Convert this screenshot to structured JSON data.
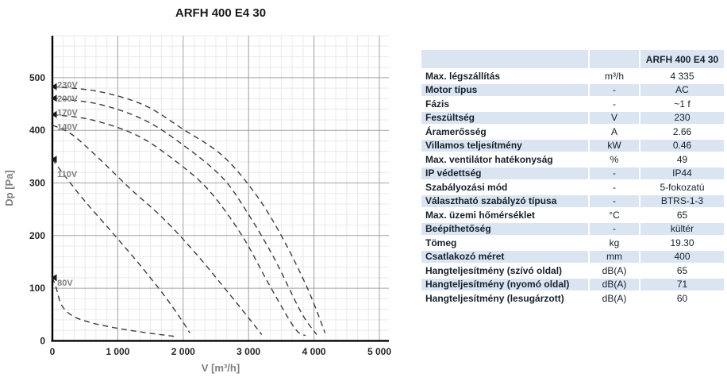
{
  "page_title": "ARFH 400 E4 30",
  "chart_data": {
    "type": "line",
    "title": "ARFH 400 E4 30",
    "xlabel": "V [m³/h]",
    "ylabel": "Dp [Pa]",
    "xlim": [
      0,
      5166
    ],
    "ylim": [
      0,
      580
    ],
    "x_major": 1000,
    "x_minor_divisions": 6,
    "y_major": 100,
    "y_minor": 20,
    "grid": true,
    "line_style": "dashed",
    "x_ticks": [
      "0",
      "1 000",
      "2 000",
      "3 000",
      "4 000",
      "5 000"
    ],
    "x_tick_values": [
      0,
      1000,
      2000,
      3000,
      4000,
      5000
    ],
    "y_ticks": [
      "0",
      "100",
      "200",
      "300",
      "400",
      "500"
    ],
    "y_tick_values": [
      0,
      100,
      200,
      300,
      400,
      500
    ],
    "legend_position": "labels-at-curve-start",
    "series": [
      {
        "name": "230V",
        "label_y": 487,
        "axis_marker_y": 483,
        "points": [
          [
            0,
            483
          ],
          [
            700,
            474
          ],
          [
            1400,
            448
          ],
          [
            2000,
            402
          ],
          [
            2600,
            352
          ],
          [
            3100,
            280
          ],
          [
            3500,
            200
          ],
          [
            3900,
            100
          ],
          [
            4170,
            15
          ]
        ]
      },
      {
        "name": "200V",
        "label_y": 461,
        "axis_marker_y": 461,
        "points": [
          [
            0,
            461
          ],
          [
            700,
            450
          ],
          [
            1400,
            420
          ],
          [
            2000,
            372
          ],
          [
            2600,
            310
          ],
          [
            3000,
            240
          ],
          [
            3400,
            155
          ],
          [
            3800,
            55
          ],
          [
            4040,
            12
          ]
        ]
      },
      {
        "name": "170V",
        "label_y": 434,
        "axis_marker_y": 430,
        "points": [
          [
            0,
            430
          ],
          [
            600,
            420
          ],
          [
            1300,
            390
          ],
          [
            1900,
            340
          ],
          [
            2400,
            285
          ],
          [
            2900,
            200
          ],
          [
            3300,
            110
          ],
          [
            3700,
            25
          ],
          [
            3870,
            10
          ]
        ]
      },
      {
        "name": "140V",
        "label_y": 407,
        "axis_marker_y": null,
        "points": [
          [
            0,
            410
          ],
          [
            300,
            392
          ],
          [
            700,
            348
          ],
          [
            1200,
            288
          ],
          [
            1700,
            232
          ],
          [
            2200,
            165
          ],
          [
            2700,
            90
          ],
          [
            3100,
            28
          ],
          [
            3200,
            12
          ]
        ]
      },
      {
        "name": "110V",
        "label_y": 317,
        "axis_marker_y": 345,
        "points": [
          [
            0,
            345
          ],
          [
            200,
            312
          ],
          [
            500,
            265
          ],
          [
            900,
            208
          ],
          [
            1300,
            150
          ],
          [
            1700,
            88
          ],
          [
            2000,
            35
          ],
          [
            2100,
            15
          ]
        ]
      },
      {
        "name": "80V",
        "label_y": 111,
        "axis_marker_y": 120,
        "points": [
          [
            0,
            120
          ],
          [
            60,
            100
          ],
          [
            140,
            68
          ],
          [
            300,
            48
          ],
          [
            550,
            36
          ],
          [
            900,
            26
          ],
          [
            1400,
            16
          ],
          [
            1900,
            8
          ]
        ]
      }
    ],
    "colors": {
      "curve": "#3d3d3d",
      "grid_major": "#a3a3a3",
      "grid_minor": "#e9e9e9",
      "axis": "#000000",
      "tick_text": "#262626",
      "axis_title_text": "#7f7f7f",
      "curve_label_text": "#808080",
      "title_text": "#1a1a1a",
      "marker": "#1b1b1b"
    }
  },
  "table": {
    "header": {
      "col_label": "",
      "col_unit": "",
      "col_value": "ARFH 400 E4 30"
    },
    "rows": [
      {
        "label": "Max. légszállítás",
        "unit": "m³/h",
        "value": "4 335"
      },
      {
        "label": "Motor típus",
        "unit": "-",
        "value": "AC"
      },
      {
        "label": "Fázis",
        "unit": "-",
        "value": "~1 f"
      },
      {
        "label": "Feszültség",
        "unit": "V",
        "value": "230"
      },
      {
        "label": "Áramerősség",
        "unit": "A",
        "value": "2.66"
      },
      {
        "label": "Villamos teljesítmény",
        "unit": "kW",
        "value": "0.46"
      },
      {
        "label": "Max. ventilátor hatékonyság",
        "unit": "%",
        "value": "49"
      },
      {
        "label": "IP védettség",
        "unit": "-",
        "value": "IP44"
      },
      {
        "label": "Szabályozási mód",
        "unit": "-",
        "value": "5-fokozatú"
      },
      {
        "label": "Választható szabályzó típusa",
        "unit": "-",
        "value": "BTRS-1-3"
      },
      {
        "label": "Max. üzemi hőmérséklet",
        "unit": "°C",
        "value": "65"
      },
      {
        "label": "Beépíthetőség",
        "unit": "-",
        "value": "kültér"
      },
      {
        "label": "Tömeg",
        "unit": "kg",
        "value": "19.30"
      },
      {
        "label": "Csatlakozó méret",
        "unit": "mm",
        "value": "400"
      },
      {
        "label": "Hangteljesítmény (szívó oldal)",
        "unit": "dB(A)",
        "value": "65"
      },
      {
        "label": "Hangteljesítmény (nyomó oldal)",
        "unit": "dB(A)",
        "value": "71"
      },
      {
        "label": "Hangteljesítmény (lesugárzott)",
        "unit": "dB(A)",
        "value": "60"
      }
    ],
    "colors": {
      "band": "#dbe5f1",
      "row_white": "#ffffff",
      "text": "#16202b"
    }
  }
}
